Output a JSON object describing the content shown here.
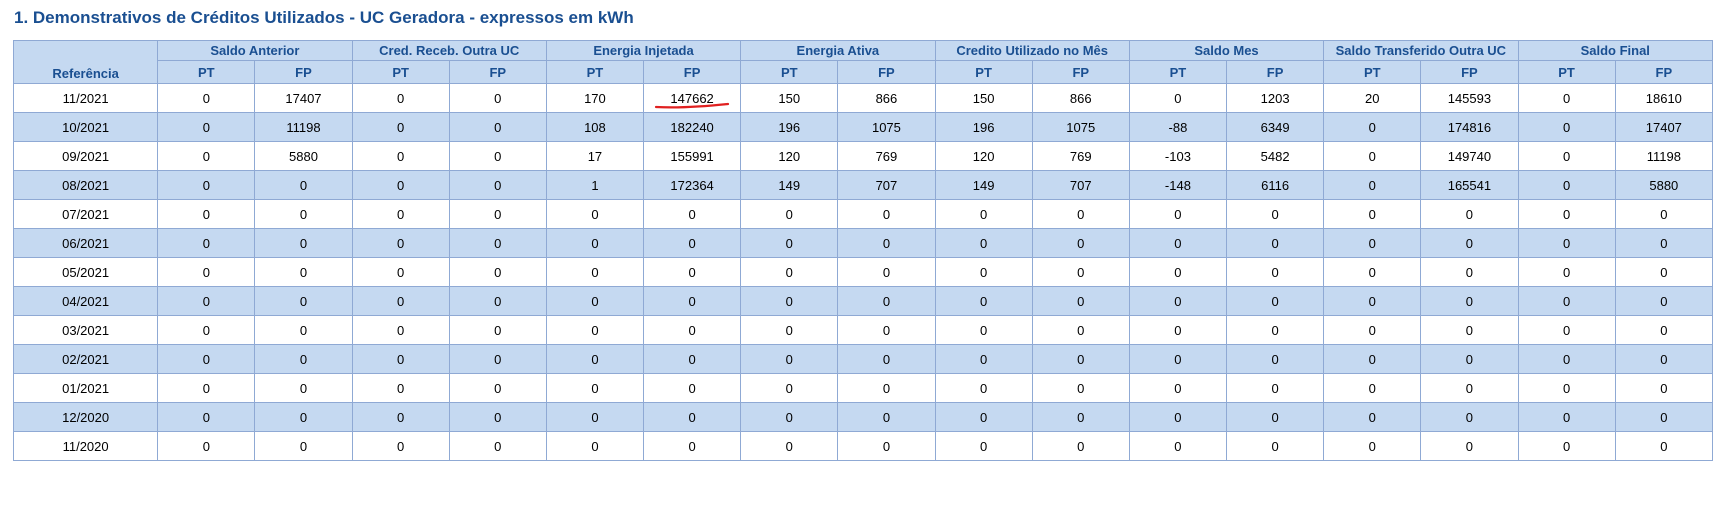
{
  "title": "1. Demonstrativos de Créditos Utilizados - UC Geradora - expressos em kWh",
  "header": {
    "reference_label": "Referência",
    "groups": [
      "Saldo Anterior",
      "Cred. Receb. Outra UC",
      "Energia Injetada",
      "Energia Ativa",
      "Credito Utilizado no Mês",
      "Saldo Mes",
      "Saldo Transferido Outra UC",
      "Saldo Final"
    ],
    "sub_pt": "PT",
    "sub_fp": "FP"
  },
  "rows": [
    {
      "ref": "11/2021",
      "values": [
        "0",
        "17407",
        "0",
        "0",
        "170",
        "147662",
        "150",
        "866",
        "150",
        "866",
        "0",
        "1203",
        "20",
        "145593",
        "0",
        "18610"
      ]
    },
    {
      "ref": "10/2021",
      "values": [
        "0",
        "11198",
        "0",
        "0",
        "108",
        "182240",
        "196",
        "1075",
        "196",
        "1075",
        "-88",
        "6349",
        "0",
        "174816",
        "0",
        "17407"
      ]
    },
    {
      "ref": "09/2021",
      "values": [
        "0",
        "5880",
        "0",
        "0",
        "17",
        "155991",
        "120",
        "769",
        "120",
        "769",
        "-103",
        "5482",
        "0",
        "149740",
        "0",
        "11198"
      ]
    },
    {
      "ref": "08/2021",
      "values": [
        "0",
        "0",
        "0",
        "0",
        "1",
        "172364",
        "149",
        "707",
        "149",
        "707",
        "-148",
        "6116",
        "0",
        "165541",
        "0",
        "5880"
      ]
    },
    {
      "ref": "07/2021",
      "values": [
        "0",
        "0",
        "0",
        "0",
        "0",
        "0",
        "0",
        "0",
        "0",
        "0",
        "0",
        "0",
        "0",
        "0",
        "0",
        "0"
      ]
    },
    {
      "ref": "06/2021",
      "values": [
        "0",
        "0",
        "0",
        "0",
        "0",
        "0",
        "0",
        "0",
        "0",
        "0",
        "0",
        "0",
        "0",
        "0",
        "0",
        "0"
      ]
    },
    {
      "ref": "05/2021",
      "values": [
        "0",
        "0",
        "0",
        "0",
        "0",
        "0",
        "0",
        "0",
        "0",
        "0",
        "0",
        "0",
        "0",
        "0",
        "0",
        "0"
      ]
    },
    {
      "ref": "04/2021",
      "values": [
        "0",
        "0",
        "0",
        "0",
        "0",
        "0",
        "0",
        "0",
        "0",
        "0",
        "0",
        "0",
        "0",
        "0",
        "0",
        "0"
      ]
    },
    {
      "ref": "03/2021",
      "values": [
        "0",
        "0",
        "0",
        "0",
        "0",
        "0",
        "0",
        "0",
        "0",
        "0",
        "0",
        "0",
        "0",
        "0",
        "0",
        "0"
      ]
    },
    {
      "ref": "02/2021",
      "values": [
        "0",
        "0",
        "0",
        "0",
        "0",
        "0",
        "0",
        "0",
        "0",
        "0",
        "0",
        "0",
        "0",
        "0",
        "0",
        "0"
      ]
    },
    {
      "ref": "01/2021",
      "values": [
        "0",
        "0",
        "0",
        "0",
        "0",
        "0",
        "0",
        "0",
        "0",
        "0",
        "0",
        "0",
        "0",
        "0",
        "0",
        "0"
      ]
    },
    {
      "ref": "12/2020",
      "values": [
        "0",
        "0",
        "0",
        "0",
        "0",
        "0",
        "0",
        "0",
        "0",
        "0",
        "0",
        "0",
        "0",
        "0",
        "0",
        "0"
      ]
    },
    {
      "ref": "11/2020",
      "values": [
        "0",
        "0",
        "0",
        "0",
        "0",
        "0",
        "0",
        "0",
        "0",
        "0",
        "0",
        "0",
        "0",
        "0",
        "0",
        "0"
      ]
    }
  ],
  "highlight": {
    "row": 0,
    "col": 5,
    "color": "#e02020"
  },
  "colors": {
    "title": "#1a4f91",
    "header_bg": "#c5d9f1",
    "stripe": "#c5d9f1",
    "border": "#8fa9d4"
  }
}
